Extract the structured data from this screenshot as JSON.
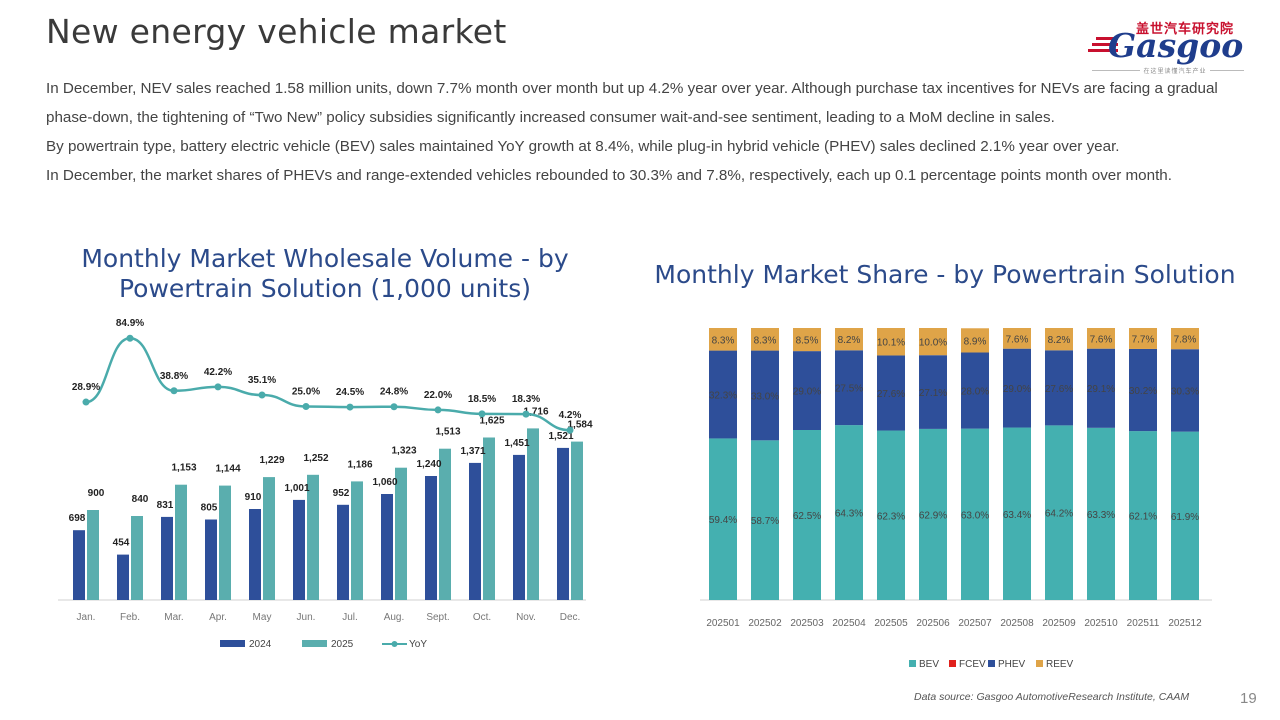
{
  "header": {
    "title": "New energy vehicle market",
    "logo_cn": "盖世汽车研究院",
    "logo_word": "Gasgoo",
    "logo_sub": "在这里读懂汽车产业"
  },
  "paragraphs": [
    "In December, NEV sales reached 1.58 million units, down 7.7% month over month but up 4.2% year over year. Although purchase tax incentives for NEVs are facing a gradual phase-down, the tightening of “Two New” policy subsidies significantly increased consumer wait-and-see sentiment, leading to a MoM decline in sales.",
    "By powertrain type, battery electric vehicle (BEV) sales maintained YoY growth at 8.4%, while plug-in hybrid vehicle (PHEV) sales declined 2.1% year over year.",
    "In December, the market shares of PHEVs and range-extended vehicles rebounded to 30.3% and 7.8%, respectively, each up 0.1 percentage points month over month."
  ],
  "chart_data": [
    {
      "type": "bar",
      "title": "Monthly Market Wholesale Volume - by Powertrain Solution (1,000 units)",
      "categories": [
        "Jan.",
        "Feb.",
        "Mar.",
        "Apr.",
        "May",
        "Jun.",
        "Jul.",
        "Aug.",
        "Sept.",
        "Oct.",
        "Nov.",
        "Dec."
      ],
      "series": [
        {
          "name": "2024",
          "color": "#2e4f9a",
          "values": [
            698,
            454,
            831,
            805,
            910,
            1001,
            952,
            1060,
            1240,
            1371,
            1451,
            1521
          ],
          "labels": [
            "698",
            "454",
            "831",
            "805",
            "910",
            "1,001",
            "952",
            "1,060",
            "1,240",
            "1,371",
            "1,451",
            "1,521"
          ]
        },
        {
          "name": "2025",
          "color": "#5aaeae",
          "values": [
            900,
            840,
            1153,
            1144,
            1229,
            1252,
            1186,
            1323,
            1513,
            1625,
            1716,
            1584
          ],
          "labels": [
            "900",
            "840",
            "1,153",
            "1,144",
            "1,229",
            "1,252",
            "1,186",
            "1,323",
            "1,513",
            "1,625",
            "1,716",
            "1,584"
          ]
        },
        {
          "name": "YoY",
          "type": "line",
          "color": "#4aabab",
          "values": [
            28.9,
            84.9,
            38.8,
            42.2,
            35.1,
            25.0,
            24.5,
            24.8,
            22.0,
            18.5,
            18.3,
            4.2
          ],
          "labels": [
            "28.9%",
            "84.9%",
            "38.8%",
            "42.2%",
            "35.1%",
            "25.0%",
            "24.5%",
            "24.8%",
            "22.0%",
            "18.5%",
            "18.3%",
            "4.2%"
          ]
        }
      ],
      "ylim": [
        0,
        2000
      ],
      "legend": "bottom"
    },
    {
      "type": "bar",
      "stacked": true,
      "title": "Monthly Market Share - by Powertrain Solution",
      "categories": [
        "202501",
        "202502",
        "202503",
        "202504",
        "202505",
        "202506",
        "202507",
        "202508",
        "202509",
        "202510",
        "202511",
        "202512"
      ],
      "series": [
        {
          "name": "BEV",
          "color": "#44b0b0",
          "values": [
            59.4,
            58.7,
            62.5,
            64.3,
            62.3,
            62.9,
            63.0,
            63.4,
            64.2,
            63.3,
            62.1,
            61.9
          ],
          "labels": [
            "59.4%",
            "58.7%",
            "62.5%",
            "64.3%",
            "62.3%",
            "62.9%",
            "63.0%",
            "63.4%",
            "64.2%",
            "63.3%",
            "62.1%",
            "61.9%"
          ]
        },
        {
          "name": "FCEV",
          "color": "#e0201c",
          "values": [
            0,
            0,
            0,
            0,
            0,
            0,
            0,
            0,
            0,
            0,
            0,
            0
          ],
          "labels": []
        },
        {
          "name": "PHEV",
          "color": "#2e4f9a",
          "values": [
            32.3,
            33.0,
            29.0,
            27.5,
            27.6,
            27.1,
            28.0,
            29.0,
            27.6,
            29.1,
            30.2,
            30.3
          ],
          "labels": [
            "32.3%",
            "33.0%",
            "29.0%",
            "27.5%",
            "27.6%",
            "27.1%",
            "28.0%",
            "29.0%",
            "27.6%",
            "29.1%",
            "30.2%",
            "30.3%"
          ]
        },
        {
          "name": "REEV",
          "color": "#dfa448",
          "values": [
            8.3,
            8.3,
            8.5,
            8.2,
            10.1,
            10.0,
            8.9,
            7.6,
            8.2,
            7.6,
            7.7,
            7.8
          ],
          "labels": [
            "8.3%",
            "8.3%",
            "8.5%",
            "8.2%",
            "10.1%",
            "10.0%",
            "8.9%",
            "7.6%",
            "8.2%",
            "7.6%",
            "7.7%",
            "7.8%"
          ]
        }
      ],
      "ylim": [
        0,
        100
      ],
      "legend": "bottom"
    }
  ],
  "footer": {
    "source": "Data source: Gasgoo AutomotiveResearch Institute, CAAM",
    "page": "19"
  }
}
